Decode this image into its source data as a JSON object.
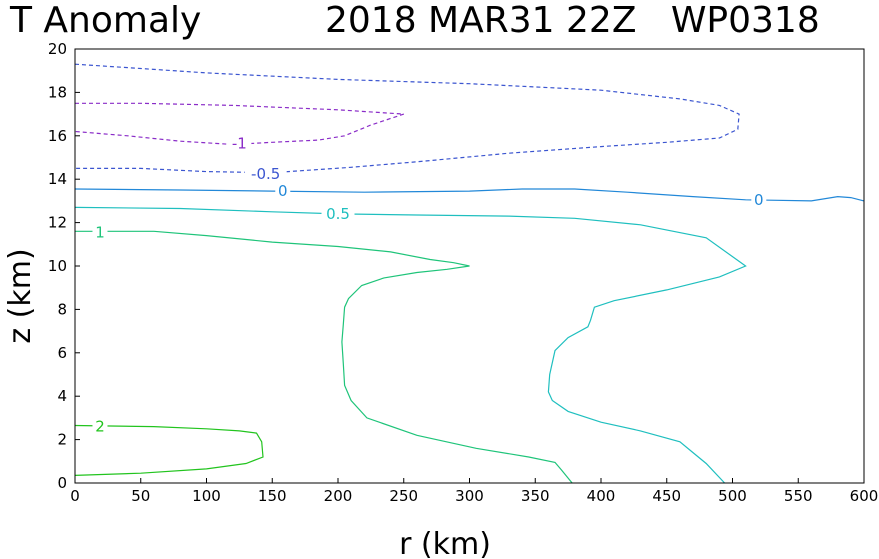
{
  "chart_data": {
    "type": "contour",
    "title_left": "T Anomaly",
    "title_right": "2018 MAR31 22Z   WP0318",
    "xlabel": "r (km)",
    "ylabel": "z (km)",
    "xlim": [
      0,
      600
    ],
    "ylim": [
      0,
      20
    ],
    "xticks": [
      "0",
      "50",
      "100",
      "150",
      "200",
      "250",
      "300",
      "350",
      "400",
      "450",
      "500",
      "550",
      "600"
    ],
    "yticks": [
      "0",
      "2",
      "4",
      "6",
      "8",
      "10",
      "12",
      "14",
      "16",
      "18",
      "20"
    ],
    "grid": false,
    "contours": [
      {
        "level": "2",
        "color": "#22c41e",
        "style": "solid",
        "points": [
          [
            0,
            2.65
          ],
          [
            60,
            2.6
          ],
          [
            100,
            2.5
          ],
          [
            125,
            2.4
          ],
          [
            138,
            2.3
          ],
          [
            142,
            1.9
          ],
          [
            143,
            1.2
          ],
          [
            130,
            0.9
          ],
          [
            100,
            0.65
          ],
          [
            50,
            0.45
          ],
          [
            0,
            0.35
          ]
        ],
        "label_at": [
          19,
          2.6
        ]
      },
      {
        "level": "1",
        "color": "#1fc47a",
        "style": "solid",
        "points": [
          [
            0,
            11.6
          ],
          [
            30,
            11.6
          ],
          [
            60,
            11.6
          ],
          [
            100,
            11.4
          ],
          [
            150,
            11.1
          ],
          [
            200,
            10.9
          ],
          [
            240,
            10.65
          ],
          [
            270,
            10.3
          ],
          [
            288,
            10.15
          ],
          [
            300,
            10.0
          ],
          [
            283,
            9.85
          ],
          [
            260,
            9.7
          ],
          [
            235,
            9.45
          ],
          [
            218,
            9.1
          ],
          [
            208,
            8.5
          ],
          [
            205,
            8.1
          ],
          [
            204,
            7.3
          ],
          [
            203,
            6.5
          ],
          [
            204,
            5.5
          ],
          [
            205,
            4.5
          ],
          [
            210,
            3.8
          ],
          [
            222,
            3.0
          ],
          [
            260,
            2.2
          ],
          [
            305,
            1.6
          ],
          [
            345,
            1.2
          ],
          [
            365,
            0.95
          ],
          [
            370,
            0.6
          ],
          [
            378,
            0
          ]
        ],
        "label_at": [
          19,
          11.55
        ]
      },
      {
        "level": "0.5",
        "color": "#1fbfbf",
        "style": "solid",
        "points": [
          [
            0,
            12.7
          ],
          [
            80,
            12.65
          ],
          [
            150,
            12.5
          ],
          [
            200,
            12.4
          ],
          [
            260,
            12.35
          ],
          [
            330,
            12.3
          ],
          [
            380,
            12.2
          ],
          [
            430,
            11.9
          ],
          [
            480,
            11.3
          ],
          [
            510,
            10.0
          ],
          [
            490,
            9.5
          ],
          [
            450,
            8.9
          ],
          [
            410,
            8.4
          ],
          [
            395,
            8.1
          ],
          [
            392,
            7.5
          ],
          [
            390,
            7.2
          ],
          [
            375,
            6.7
          ],
          [
            365,
            6.1
          ],
          [
            361,
            5.0
          ],
          [
            360,
            4.2
          ],
          [
            363,
            3.8
          ],
          [
            375,
            3.3
          ],
          [
            400,
            2.8
          ],
          [
            430,
            2.4
          ],
          [
            460,
            1.9
          ],
          [
            470,
            1.4
          ],
          [
            480,
            0.9
          ],
          [
            494,
            0
          ]
        ],
        "label_at": [
          200,
          12.4
        ]
      },
      {
        "level": "0",
        "color": "#2288d8",
        "style": "solid",
        "points": [
          [
            0,
            13.55
          ],
          [
            80,
            13.5
          ],
          [
            150,
            13.45
          ],
          [
            220,
            13.4
          ],
          [
            300,
            13.45
          ],
          [
            340,
            13.55
          ],
          [
            380,
            13.55
          ],
          [
            420,
            13.4
          ],
          [
            470,
            13.2
          ],
          [
            510,
            13.05
          ],
          [
            560,
            13.0
          ],
          [
            580,
            13.2
          ],
          [
            590,
            13.15
          ],
          [
            600,
            13.0
          ]
        ],
        "label_at": [
          158,
          13.45
        ],
        "label2_at": [
          520,
          13.05
        ]
      },
      {
        "level": "-0.5",
        "color": "#3b55d0",
        "style": "dashed",
        "points": [
          [
            0,
            19.3
          ],
          [
            50,
            19.1
          ],
          [
            100,
            18.9
          ],
          [
            200,
            18.6
          ],
          [
            300,
            18.4
          ],
          [
            400,
            18.1
          ],
          [
            460,
            17.7
          ],
          [
            490,
            17.4
          ],
          [
            505,
            17.0
          ],
          [
            504,
            16.3
          ],
          [
            490,
            15.9
          ],
          [
            450,
            15.7
          ],
          [
            400,
            15.5
          ],
          [
            330,
            15.2
          ],
          [
            260,
            14.8
          ],
          [
            210,
            14.55
          ],
          [
            150,
            14.3
          ],
          [
            100,
            14.35
          ],
          [
            50,
            14.5
          ],
          [
            0,
            14.5
          ]
        ],
        "label_at": [
          145,
          14.25
        ]
      },
      {
        "level": "-1",
        "color": "#8a2cc8",
        "style": "dashed",
        "points": [
          [
            0,
            17.5
          ],
          [
            50,
            17.5
          ],
          [
            120,
            17.4
          ],
          [
            200,
            17.2
          ],
          [
            250,
            17.0
          ],
          [
            225,
            16.5
          ],
          [
            205,
            16.0
          ],
          [
            185,
            15.8
          ],
          [
            150,
            15.7
          ],
          [
            120,
            15.6
          ],
          [
            80,
            15.75
          ],
          [
            40,
            16.0
          ],
          [
            0,
            16.2
          ]
        ],
        "label_at": [
          125,
          15.65
        ]
      }
    ]
  }
}
